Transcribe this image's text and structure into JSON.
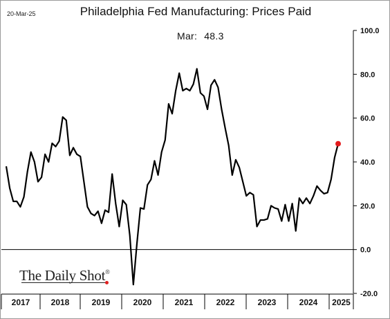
{
  "header": {
    "date": "20-Mar-25",
    "title": "Philadelphia Fed Manufacturing: Prices Paid",
    "readout_month": "Mar:",
    "readout_value": "48.3"
  },
  "branding": {
    "name": "The Daily Shot",
    "mark": "®"
  },
  "colors": {
    "line": "#000000",
    "highlight": "#e31a1c",
    "axis": "#000000"
  },
  "chart_data": {
    "type": "line",
    "title": "Philadelphia Fed Manufacturing: Prices Paid",
    "xlabel": "",
    "ylabel": "",
    "ylim": [
      -20,
      100
    ],
    "yticks": [
      -20,
      0,
      20,
      40,
      60,
      80,
      100
    ],
    "ytick_labels": [
      "-20.0",
      "0.0",
      "20.0",
      "40.0",
      "60.0",
      "80.0",
      "100.0"
    ],
    "xcategories": [
      "2017",
      "2018",
      "2019",
      "2020",
      "2021",
      "2022",
      "2023",
      "2024",
      "2025"
    ],
    "y_axis_position": "right",
    "grid": false,
    "zero_line": true,
    "series": [
      {
        "values": [
          38,
          28,
          22,
          22,
          19.5,
          24,
          35.5,
          44.5,
          40,
          31,
          33,
          43.5,
          40,
          48.5,
          47,
          49.5,
          60.5,
          59,
          43,
          46.5,
          43.5,
          42.5,
          31,
          19.5,
          16.5,
          15.5,
          17.5,
          12,
          18,
          17,
          34.5,
          21,
          10.5,
          22.5,
          20.5,
          6.5,
          -16,
          2.5,
          19,
          18.5,
          29.5,
          32,
          40.5,
          34,
          44.5,
          50,
          66.5,
          62,
          72.5,
          80.5,
          72.5,
          73.5,
          72.5,
          75.5,
          82.5,
          71.5,
          70,
          64,
          75,
          77.5,
          74,
          64,
          55.5,
          47.5,
          34,
          41,
          37.5,
          31,
          24.5,
          26,
          25,
          10.5,
          13.5,
          13.5,
          14,
          20,
          19,
          18.5,
          13,
          20.5,
          13,
          21,
          8.5,
          23.5,
          21,
          23.5,
          21,
          24.5,
          29,
          27,
          25.5,
          26,
          32,
          42,
          48.3
        ]
      }
    ],
    "last_point": {
      "label": "Mar",
      "value": 48.3
    }
  }
}
